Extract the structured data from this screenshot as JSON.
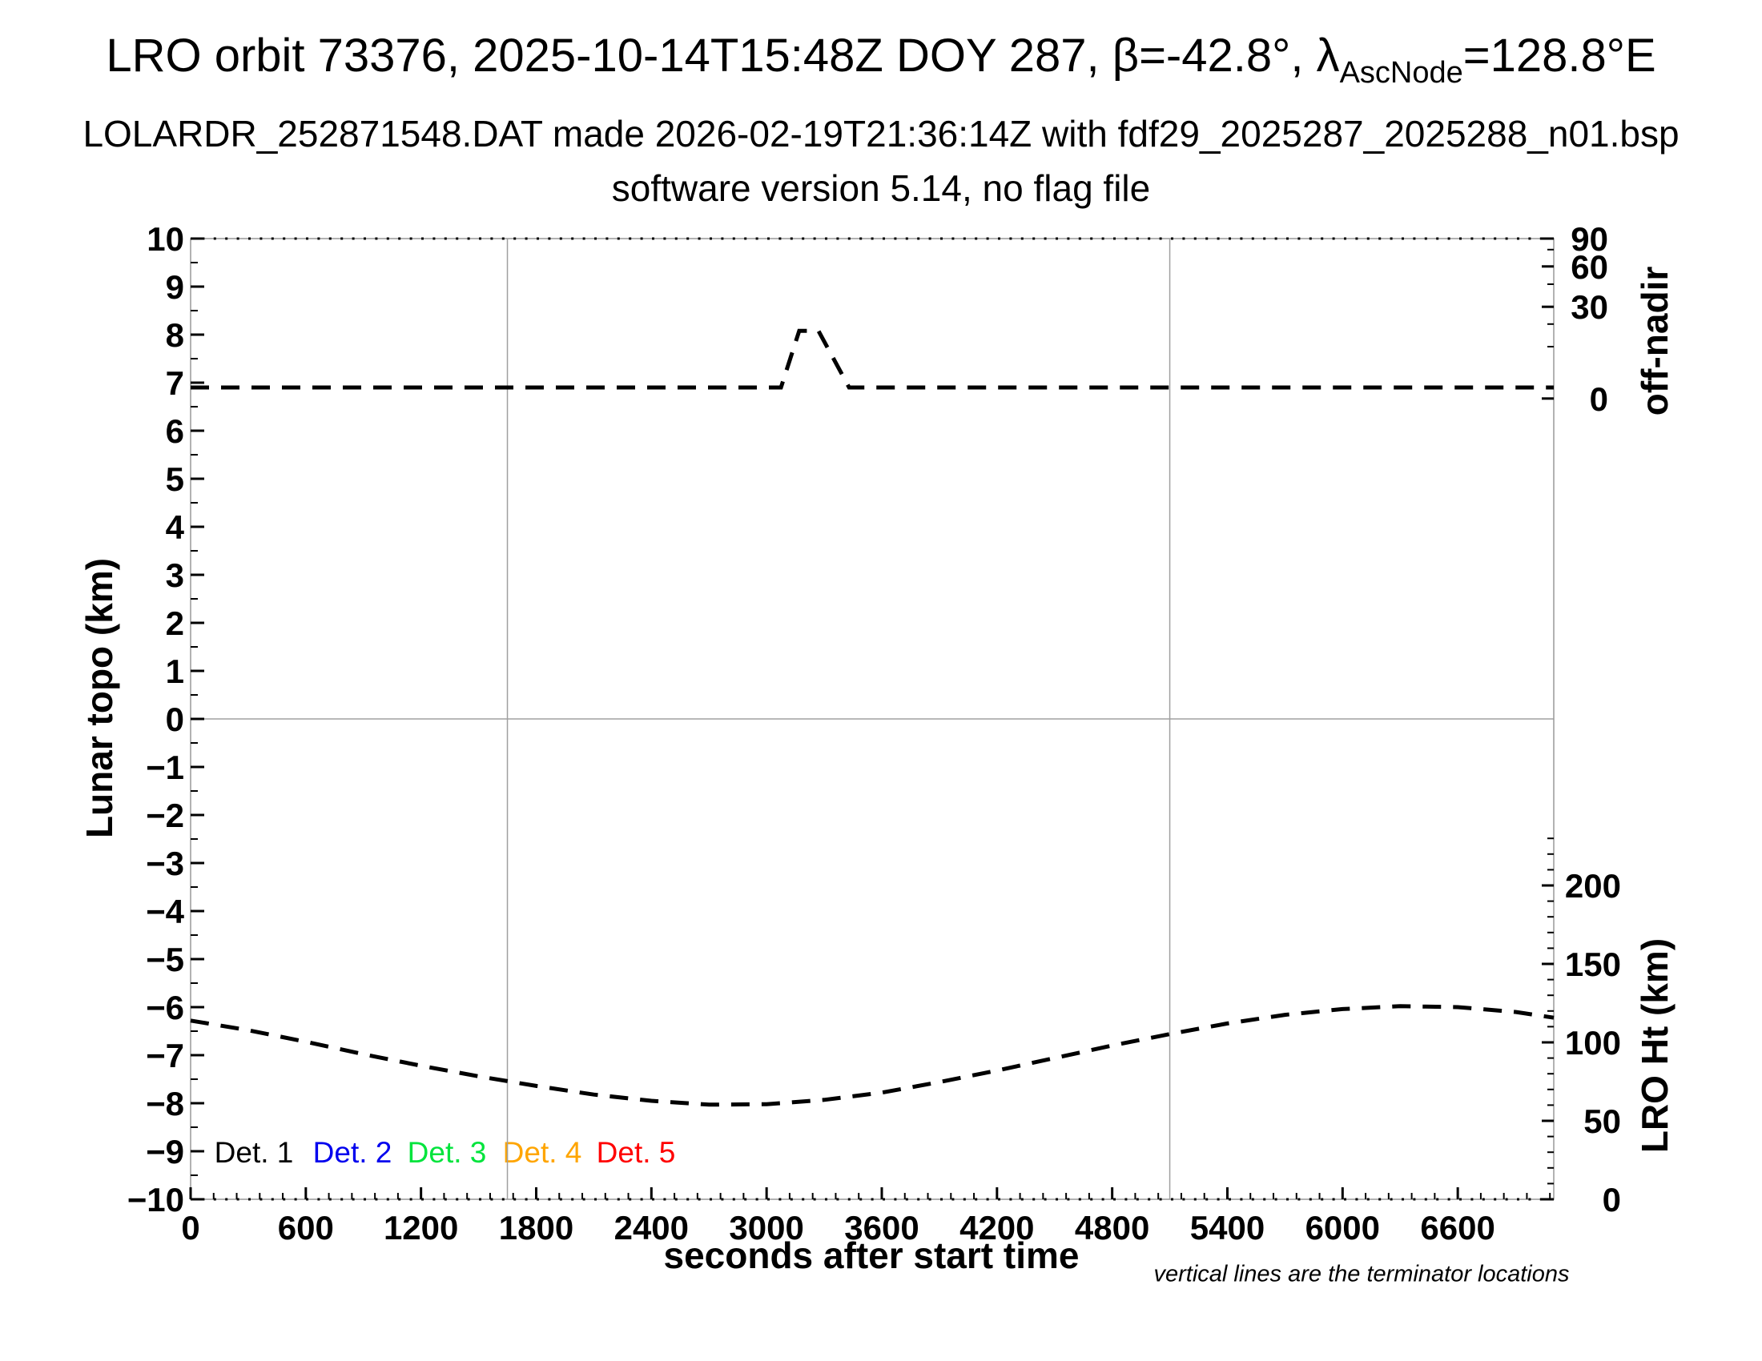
{
  "title": {
    "part1": "LRO orbit 73376, 2025-10-14T15:48Z DOY 287, β=-42.8°, λ",
    "subscript": "AscNode",
    "part2": "=128.8°E"
  },
  "subtitle1": "LOLARDR_252871548.DAT made 2026-02-19T21:36:14Z with fdf29_2025287_2025288_n01.bsp",
  "subtitle2": "software version 5.14, no flag file",
  "footnote": "vertical lines are the terminator locations",
  "axis_labels": {
    "x": "seconds after start time",
    "y_left": "Lunar topo (km)",
    "y_right_top": "off-nadir",
    "y_right_bottom": "LRO Ht (km)"
  },
  "legend": [
    {
      "label": "Det. 1",
      "color": "#000000"
    },
    {
      "label": "Det. 2",
      "color": "#0000ee"
    },
    {
      "label": "Det. 3",
      "color": "#00e43c"
    },
    {
      "label": "Det. 4",
      "color": "#ffa500"
    },
    {
      "label": "Det. 5",
      "color": "#ff0000"
    }
  ],
  "colors": {
    "frame_gray": "#999999",
    "guide_gray": "#a0a0a0",
    "curve_black": "#000000"
  },
  "chart_data": {
    "type": "line",
    "title": "LRO orbit 73376, 2025-10-14T15:48Z DOY 287, β=-42.8°, λAscNode=128.8°E",
    "xlabel": "seconds after start time",
    "ylabel_left": "Lunar topo (km)",
    "ylabel_right_top": "off-nadir",
    "ylabel_right_bottom": "LRO Ht (km)",
    "x_range_s": [
      0,
      7100
    ],
    "y_left_range_km": [
      -10,
      10
    ],
    "x_major_ticks": [
      0,
      600,
      1200,
      1800,
      2400,
      3000,
      3600,
      4200,
      4800,
      5400,
      6000,
      6600
    ],
    "x_minor_step_s": 120,
    "y_left_major_ticks": [
      10,
      9,
      8,
      7,
      6,
      5,
      4,
      3,
      2,
      1,
      0,
      -1,
      -2,
      -3,
      -4,
      -5,
      -6,
      -7,
      -8,
      -9,
      -10
    ],
    "y_left_minor_step_km": 0.5,
    "off_nadir_ticks_deg": [
      90,
      60,
      30,
      0
    ],
    "off_nadir_tick_topo_positions": {
      "90": 10.0,
      "60": 9.42,
      "30": 8.58,
      "0": 6.67
    },
    "off_nadir_minor_topo_positions": [
      9.77,
      9.05,
      8.22,
      7.75
    ],
    "lro_ht_ticks_km": [
      200,
      150,
      100,
      50,
      0
    ],
    "lro_ht_minor_step_km": 10,
    "terminator_lines_s": [
      1650,
      5100
    ],
    "zero_topo_gridline_km": 0,
    "grid": "horizontal line at topo 0 and two vertical terminator lines only",
    "legend_position": "inside bottom-left",
    "series": [
      {
        "name": "off-nadir angle profile",
        "style": "dashed",
        "color": "#000000",
        "units": "plotted against left axis (topo-km equivalent); baseline ~2 deg, peak ~22 deg off-nadir",
        "points": [
          [
            0,
            6.9
          ],
          [
            3075,
            6.9
          ],
          [
            3170,
            8.08
          ],
          [
            3270,
            8.08
          ],
          [
            3430,
            6.9
          ],
          [
            7100,
            6.9
          ]
        ]
      },
      {
        "name": "LRO height profile",
        "style": "dashed",
        "color": "#000000",
        "units": "plotted against left axis (topo-km equivalent); right axis reads ~113 km at start, min ~59 km, max ~121 km",
        "points": [
          [
            0,
            -6.28
          ],
          [
            300,
            -6.48
          ],
          [
            600,
            -6.72
          ],
          [
            900,
            -6.98
          ],
          [
            1200,
            -7.22
          ],
          [
            1500,
            -7.44
          ],
          [
            1650,
            -7.54
          ],
          [
            1800,
            -7.64
          ],
          [
            2100,
            -7.82
          ],
          [
            2400,
            -7.95
          ],
          [
            2700,
            -8.03
          ],
          [
            3000,
            -8.02
          ],
          [
            3300,
            -7.93
          ],
          [
            3600,
            -7.78
          ],
          [
            3900,
            -7.56
          ],
          [
            4200,
            -7.32
          ],
          [
            4500,
            -7.06
          ],
          [
            4800,
            -6.8
          ],
          [
            5100,
            -6.56
          ],
          [
            5400,
            -6.34
          ],
          [
            5700,
            -6.16
          ],
          [
            6000,
            -6.04
          ],
          [
            6300,
            -5.98
          ],
          [
            6600,
            -6.0
          ],
          [
            6900,
            -6.1
          ],
          [
            7100,
            -6.22
          ]
        ]
      }
    ],
    "readings": {
      "off_nadir_baseline_deg": 2,
      "off_nadir_peak_deg": 22,
      "off_nadir_peak_interval_s": [
        3075,
        3430
      ],
      "lro_ht_min_km": 59,
      "lro_ht_min_at_s": 2700,
      "lro_ht_max_km": 121,
      "lro_ht_max_at_s": 6300
    }
  }
}
